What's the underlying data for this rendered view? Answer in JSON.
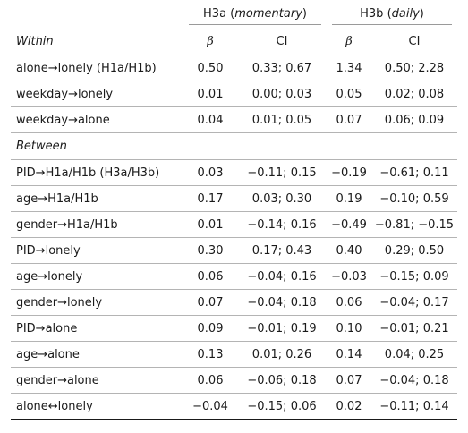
{
  "table": {
    "groups": [
      {
        "name": "H3a",
        "qualifier": "momentary"
      },
      {
        "name": "H3b",
        "qualifier": "daily"
      }
    ],
    "col_label": "Within",
    "beta_symbol": "β",
    "ci_label": "CI",
    "within_rows": [
      {
        "label": "alone→lonely (H1a/H1b)",
        "b1": "0.50",
        "ci1": "0.33; 0.67",
        "b2": "1.34",
        "ci2": "0.50; 2.28"
      },
      {
        "label": "weekday→lonely",
        "b1": "0.01",
        "ci1": "0.00; 0.03",
        "b2": "0.05",
        "ci2": "0.02; 0.08"
      },
      {
        "label": "weekday→alone",
        "b1": "0.04",
        "ci1": "0.01; 0.05",
        "b2": "0.07",
        "ci2": "0.06; 0.09"
      }
    ],
    "between_label": "Between",
    "between_rows": [
      {
        "label": "PID→H1a/H1b (H3a/H3b)",
        "b1": "0.03",
        "ci1": "−0.11; 0.15",
        "b2": "−0.19",
        "ci2": "−0.61; 0.11"
      },
      {
        "label": "age→H1a/H1b",
        "b1": "0.17",
        "ci1": "0.03; 0.30",
        "b2": "0.19",
        "ci2": "−0.10; 0.59"
      },
      {
        "label": "gender→H1a/H1b",
        "b1": "0.01",
        "ci1": "−0.14; 0.16",
        "b2": "−0.49",
        "ci2": "−0.81; −0.15"
      },
      {
        "label": "PID→lonely",
        "b1": "0.30",
        "ci1": "0.17; 0.43",
        "b2": "0.40",
        "ci2": "0.29; 0.50"
      },
      {
        "label": "age→lonely",
        "b1": "0.06",
        "ci1": "−0.04; 0.16",
        "b2": "−0.03",
        "ci2": "−0.15; 0.09"
      },
      {
        "label": "gender→lonely",
        "b1": "0.07",
        "ci1": "−0.04; 0.18",
        "b2": "0.06",
        "ci2": "−0.04; 0.17"
      },
      {
        "label": "PID→alone",
        "b1": "0.09",
        "ci1": "−0.01; 0.19",
        "b2": "0.10",
        "ci2": "−0.01; 0.21"
      },
      {
        "label": "age→alone",
        "b1": "0.13",
        "ci1": "0.01; 0.26",
        "b2": "0.14",
        "ci2": "0.04; 0.25"
      },
      {
        "label": "gender→alone",
        "b1": "0.06",
        "ci1": "−0.06; 0.18",
        "b2": "0.07",
        "ci2": "−0.04; 0.18"
      },
      {
        "label": "alone↔lonely",
        "b1": "−0.04",
        "ci1": "−0.15; 0.06",
        "b2": "0.02",
        "ci2": "−0.11; 0.14"
      }
    ]
  }
}
